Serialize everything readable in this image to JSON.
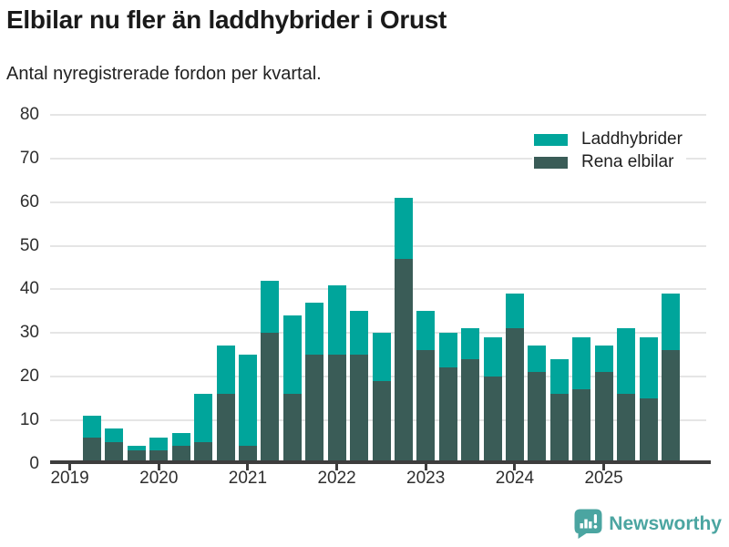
{
  "header": {
    "title": "Elbilar nu fler än laddhybrider i Orust",
    "subtitle": "Antal nyregistrerade fordon per kvartal."
  },
  "chart_data": {
    "type": "bar",
    "stacked": true,
    "title": "Elbilar nu fler än laddhybrider i Orust",
    "subtitle": "Antal nyregistrerade fordon per kvartal.",
    "categories": [
      "2019 Q2",
      "2019 Q3",
      "2019 Q4",
      "2020 Q1",
      "2020 Q2",
      "2020 Q3",
      "2020 Q4",
      "2021 Q1",
      "2021 Q2",
      "2021 Q3",
      "2021 Q4",
      "2022 Q1",
      "2022 Q2",
      "2022 Q3",
      "2022 Q4",
      "2023 Q1",
      "2023 Q2",
      "2023 Q3",
      "2023 Q4",
      "2024 Q1",
      "2024 Q2",
      "2024 Q3",
      "2024 Q4",
      "2025 Q1",
      "2025 Q2",
      "2025 Q3",
      "2025 Q4"
    ],
    "series": [
      {
        "name": "Laddhybrider",
        "color": "#00a59b",
        "values": [
          5,
          3,
          1,
          3,
          3,
          11,
          11,
          21,
          12,
          18,
          12,
          16,
          10,
          11,
          14,
          9,
          8,
          7,
          9,
          8,
          6,
          8,
          12,
          6,
          15,
          14,
          13
        ]
      },
      {
        "name": "Rena elbilar",
        "color": "#3a5c57",
        "values": [
          6,
          5,
          3,
          3,
          4,
          5,
          16,
          4,
          30,
          16,
          25,
          25,
          25,
          19,
          47,
          26,
          22,
          24,
          20,
          31,
          21,
          16,
          17,
          21,
          16,
          15,
          26
        ]
      }
    ],
    "stack_bottom_to_top": [
      "Rena elbilar",
      "Laddhybrider"
    ],
    "ylim": [
      0,
      80
    ],
    "y_ticks": [
      0,
      10,
      20,
      30,
      40,
      50,
      60,
      70,
      80
    ],
    "x_tick_labels": [
      "2019",
      "2020",
      "2021",
      "2022",
      "2023",
      "2024",
      "2025"
    ],
    "grid": true,
    "legend_position": "top-right"
  },
  "footer": {
    "brand": "Newsworthy",
    "brand_color": "#4ba5a1"
  }
}
